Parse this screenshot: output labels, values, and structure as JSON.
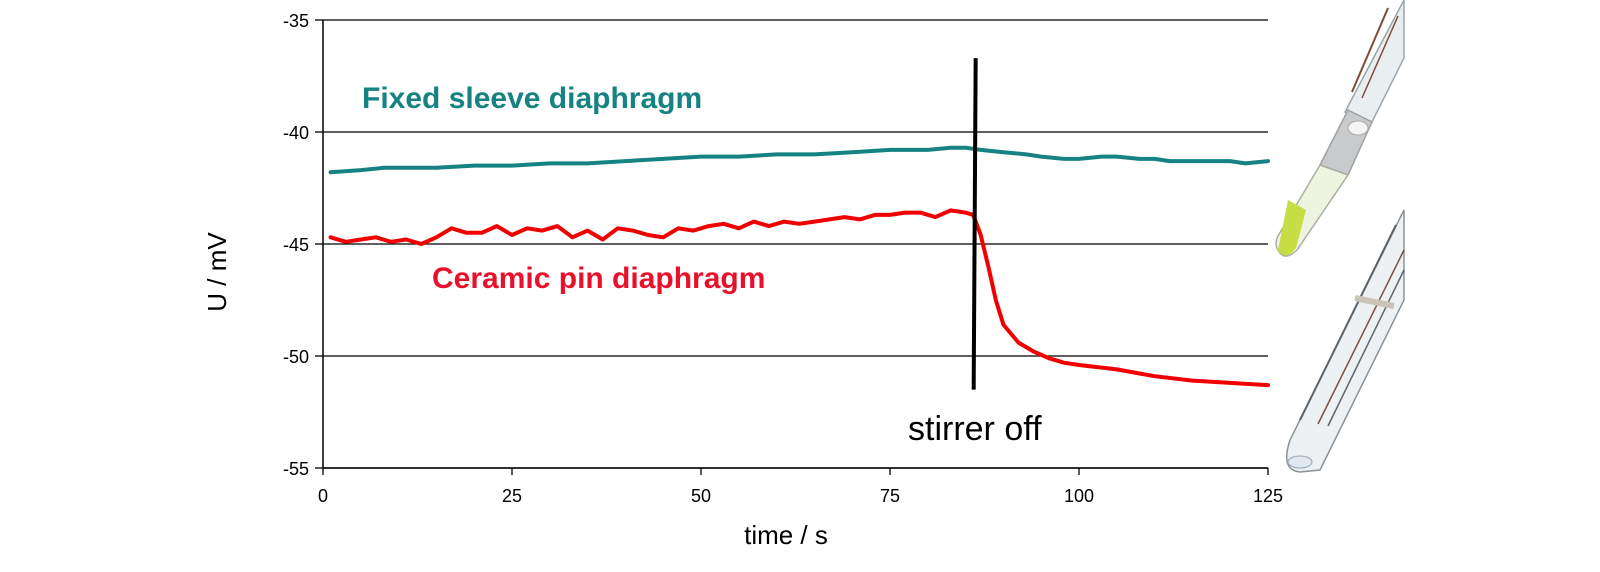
{
  "chart_data": {
    "type": "line",
    "xlabel": "time / s",
    "ylabel": "U / mV",
    "xlim": [
      0,
      125
    ],
    "ylim": [
      -55,
      -35
    ],
    "xticks": [
      0,
      25,
      50,
      75,
      100,
      125
    ],
    "yticks": [
      -35,
      -40,
      -45,
      -50,
      -55
    ],
    "grid": "horizontal",
    "series": [
      {
        "name": "Fixed sleeve diaphragm",
        "color": "#178282",
        "x": [
          1,
          5,
          8,
          12,
          15,
          20,
          25,
          30,
          35,
          40,
          45,
          50,
          55,
          60,
          65,
          70,
          75,
          80,
          83,
          85,
          87,
          90,
          93,
          95,
          98,
          100,
          103,
          105,
          108,
          110,
          112,
          115,
          118,
          120,
          122,
          125
        ],
        "y": [
          -41.8,
          -41.7,
          -41.6,
          -41.6,
          -41.6,
          -41.5,
          -41.5,
          -41.4,
          -41.4,
          -41.3,
          -41.2,
          -41.1,
          -41.1,
          -41.0,
          -41.0,
          -40.9,
          -40.8,
          -40.8,
          -40.7,
          -40.7,
          -40.8,
          -40.9,
          -41.0,
          -41.1,
          -41.2,
          -41.2,
          -41.1,
          -41.1,
          -41.2,
          -41.2,
          -41.3,
          -41.3,
          -41.3,
          -41.3,
          -41.4,
          -41.3
        ]
      },
      {
        "name": "Ceramic pin diaphragm",
        "color": "#f00000",
        "x": [
          1,
          3,
          5,
          7,
          9,
          11,
          13,
          15,
          17,
          19,
          21,
          23,
          25,
          27,
          29,
          31,
          33,
          35,
          37,
          39,
          41,
          43,
          45,
          47,
          49,
          51,
          53,
          55,
          57,
          59,
          61,
          63,
          65,
          67,
          69,
          71,
          73,
          75,
          77,
          79,
          81,
          83,
          85,
          86,
          87,
          88,
          89,
          90,
          92,
          94,
          96,
          98,
          100,
          105,
          110,
          115,
          120,
          125
        ],
        "y": [
          -44.7,
          -44.9,
          -44.8,
          -44.7,
          -44.9,
          -44.8,
          -45.0,
          -44.7,
          -44.3,
          -44.5,
          -44.5,
          -44.2,
          -44.6,
          -44.3,
          -44.4,
          -44.2,
          -44.7,
          -44.4,
          -44.8,
          -44.3,
          -44.4,
          -44.6,
          -44.7,
          -44.3,
          -44.4,
          -44.2,
          -44.1,
          -44.3,
          -44.0,
          -44.2,
          -44.0,
          -44.1,
          -44.0,
          -43.9,
          -43.8,
          -43.9,
          -43.7,
          -43.7,
          -43.6,
          -43.6,
          -43.8,
          -43.5,
          -43.6,
          -43.7,
          -44.6,
          -46.0,
          -47.5,
          -48.6,
          -49.4,
          -49.8,
          -50.1,
          -50.3,
          -50.4,
          -50.6,
          -50.9,
          -51.1,
          -51.2,
          -51.3
        ]
      }
    ],
    "annotations": [
      {
        "text": "stirrer off",
        "x": 86.2,
        "y_from": -36.7,
        "y_to": -51.5
      }
    ]
  },
  "series_labels": {
    "fixed": "Fixed sleeve diaphragm",
    "ceramic": "Ceramic pin diaphragm"
  },
  "annotation_label": "stirrer off"
}
